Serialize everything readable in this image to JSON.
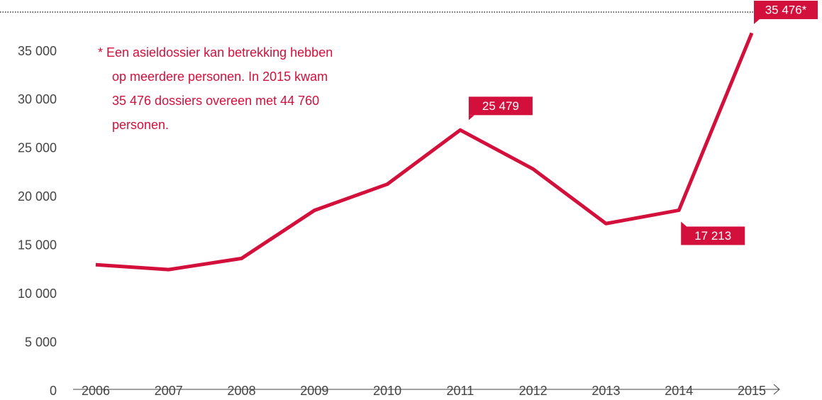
{
  "chart_data": {
    "type": "line",
    "categories": [
      "2006",
      "2007",
      "2008",
      "2009",
      "2010",
      "2011",
      "2012",
      "2013",
      "2014",
      "2015"
    ],
    "values": [
      11600,
      11100,
      12250,
      17200,
      19900,
      25479,
      21460,
      15840,
      17213,
      35476
    ],
    "value_labels": [
      null,
      null,
      null,
      null,
      null,
      "25 479",
      null,
      null,
      "17 213",
      "35 476*"
    ],
    "color": "#d3103c",
    "ylim": [
      0,
      38000
    ],
    "yticks": [
      {
        "value": 0,
        "label": "0"
      },
      {
        "value": 5000,
        "label": "5 000"
      },
      {
        "value": 10000,
        "label": "10 000"
      },
      {
        "value": 15000,
        "label": "15 000"
      },
      {
        "value": 20000,
        "label": "20 000"
      },
      {
        "value": 25000,
        "label": "25 000"
      },
      {
        "value": 30000,
        "label": "30 000"
      },
      {
        "value": 35000,
        "label": "35 000"
      }
    ],
    "annotation": [
      "* Een asieldossier kan betrekking hebben",
      "op meerdere personen. In 2015 kwam",
      "35 476 dossiers overeen met 44 760",
      "personen."
    ]
  }
}
